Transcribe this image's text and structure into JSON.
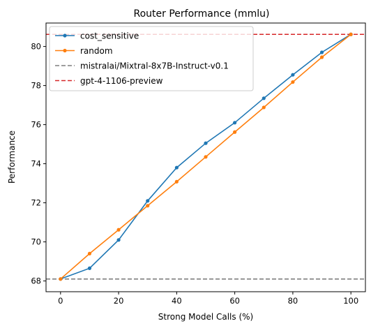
{
  "chart_data": {
    "type": "line",
    "title": "Router Performance (mmlu)",
    "xlabel": "Strong Model Calls (%)",
    "ylabel": "Performance",
    "xlim": [
      -5,
      105
    ],
    "ylim": [
      67.45,
      81.2
    ],
    "xticks": [
      0,
      20,
      40,
      60,
      80,
      100
    ],
    "yticks": [
      68,
      70,
      72,
      74,
      76,
      78,
      80
    ],
    "grid": false,
    "legend_position": "top-left",
    "series": [
      {
        "name": "cost_sensitive",
        "color": "#1f77b4",
        "marker": "dot",
        "x": [
          0,
          10,
          20,
          30,
          40,
          50,
          60,
          70,
          80,
          90,
          100
        ],
        "values": [
          68.1,
          68.65,
          70.1,
          72.1,
          73.8,
          75.05,
          76.1,
          77.35,
          78.55,
          79.7,
          80.62
        ]
      },
      {
        "name": "random",
        "color": "#ff7f0e",
        "marker": "dot",
        "x": [
          0,
          10,
          20,
          30,
          40,
          50,
          60,
          70,
          80,
          90,
          100
        ],
        "values": [
          68.1,
          69.4,
          70.62,
          71.85,
          73.08,
          74.35,
          75.62,
          76.88,
          78.18,
          79.45,
          80.62
        ]
      }
    ],
    "reference_lines": [
      {
        "name": "mistralai/Mixtral-8x7B-Instruct-v0.1",
        "value": 68.1,
        "color": "#7f7f7f",
        "style": "dashed"
      },
      {
        "name": "gpt-4-1106-preview",
        "value": 80.62,
        "color": "#d62728",
        "style": "dashed"
      }
    ]
  }
}
